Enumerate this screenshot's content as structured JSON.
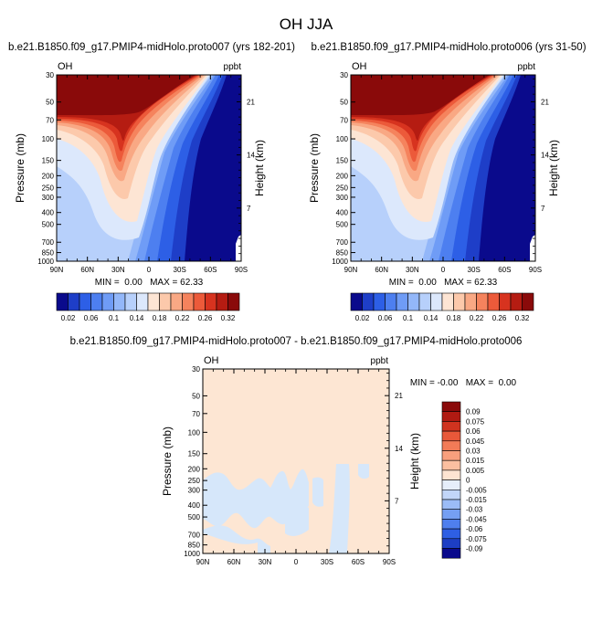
{
  "figure": {
    "title": "OH JJA"
  },
  "chart_data": [
    {
      "type": "heatmap",
      "title": "b.e21.B1850.f09_g17.PMIP4-midHolo.proto007 (yrs 182-201)",
      "left_label": "OH",
      "right_label": "ppbt",
      "ylabel": "Pressure (mb)",
      "ylabel_right": "Height (km)",
      "x_ticks": [
        "90N",
        "60N",
        "30N",
        "0",
        "30S",
        "60S",
        "90S"
      ],
      "y_ticks": [
        "30",
        "50",
        "70",
        "100",
        "150",
        "200",
        "250",
        "300",
        "400",
        "500",
        "700",
        "850",
        "1000"
      ],
      "height_ticks": [
        "21",
        "14",
        "7"
      ],
      "stats": "MIN =  0.00   MAX = 62.33"
    },
    {
      "type": "heatmap",
      "title": "b.e21.B1850.f09_g17.PMIP4-midHolo.proto006 (yrs 31-50)",
      "left_label": "OH",
      "right_label": "ppbt",
      "ylabel": "Pressure (mb)",
      "ylabel_right": "Height (km)",
      "x_ticks": [
        "90N",
        "60N",
        "30N",
        "0",
        "30S",
        "60S",
        "90S"
      ],
      "y_ticks": [
        "30",
        "50",
        "70",
        "100",
        "150",
        "200",
        "250",
        "300",
        "400",
        "500",
        "700",
        "850",
        "1000"
      ],
      "height_ticks": [
        "21",
        "14",
        "7"
      ],
      "stats": "MIN =  0.00   MAX = 62.33"
    },
    {
      "type": "heatmap",
      "title": "b.e21.B1850.f09_g17.PMIP4-midHolo.proto007 - b.e21.B1850.f09_g17.PMIP4-midHolo.proto006",
      "left_label": "OH",
      "right_label": "ppbt",
      "ylabel": "Pressure (mb)",
      "ylabel_right": "Height (km)",
      "x_ticks": [
        "90N",
        "60N",
        "30N",
        "0",
        "30S",
        "60S",
        "90S"
      ],
      "y_ticks": [
        "30",
        "50",
        "70",
        "100",
        "150",
        "200",
        "250",
        "300",
        "400",
        "500",
        "700",
        "850",
        "1000"
      ],
      "height_ticks": [
        "21",
        "14",
        "7"
      ],
      "stats": "MIN = -0.00   MAX =  0.00"
    }
  ],
  "colorbar_top": {
    "colors": [
      "#0a0a8c",
      "#1e3ec8",
      "#2d5fe6",
      "#4d7ff0",
      "#6f9cf6",
      "#93b7f9",
      "#b7d0fb",
      "#dce8fc",
      "#fde5d4",
      "#fcc9ab",
      "#f9a884",
      "#f5835d",
      "#ec5a3a",
      "#d7331f",
      "#b51c12",
      "#8a0a0a"
    ],
    "labels": [
      "0.02",
      "0.06",
      "0.1",
      "0.14",
      "0.18",
      "0.22",
      "0.26",
      "0.32"
    ]
  },
  "colorbar_diff": {
    "colors": [
      "#8a0a0a",
      "#b01a12",
      "#d0331f",
      "#e85839",
      "#f27b57",
      "#f89f7d",
      "#fbbfa0",
      "#fde4d2",
      "#e6eefa",
      "#c2d6f9",
      "#9bbcf7",
      "#759ff3",
      "#4f7fee",
      "#2e5fe4",
      "#1d3ec4",
      "#0a0a8c"
    ],
    "labels": [
      "0.09",
      "0.075",
      "0.06",
      "0.045",
      "0.03",
      "0.015",
      "0.005",
      "0",
      "-0.005",
      "-0.015",
      "-0.03",
      "-0.045",
      "-0.06",
      "-0.075",
      "-0.09"
    ]
  }
}
